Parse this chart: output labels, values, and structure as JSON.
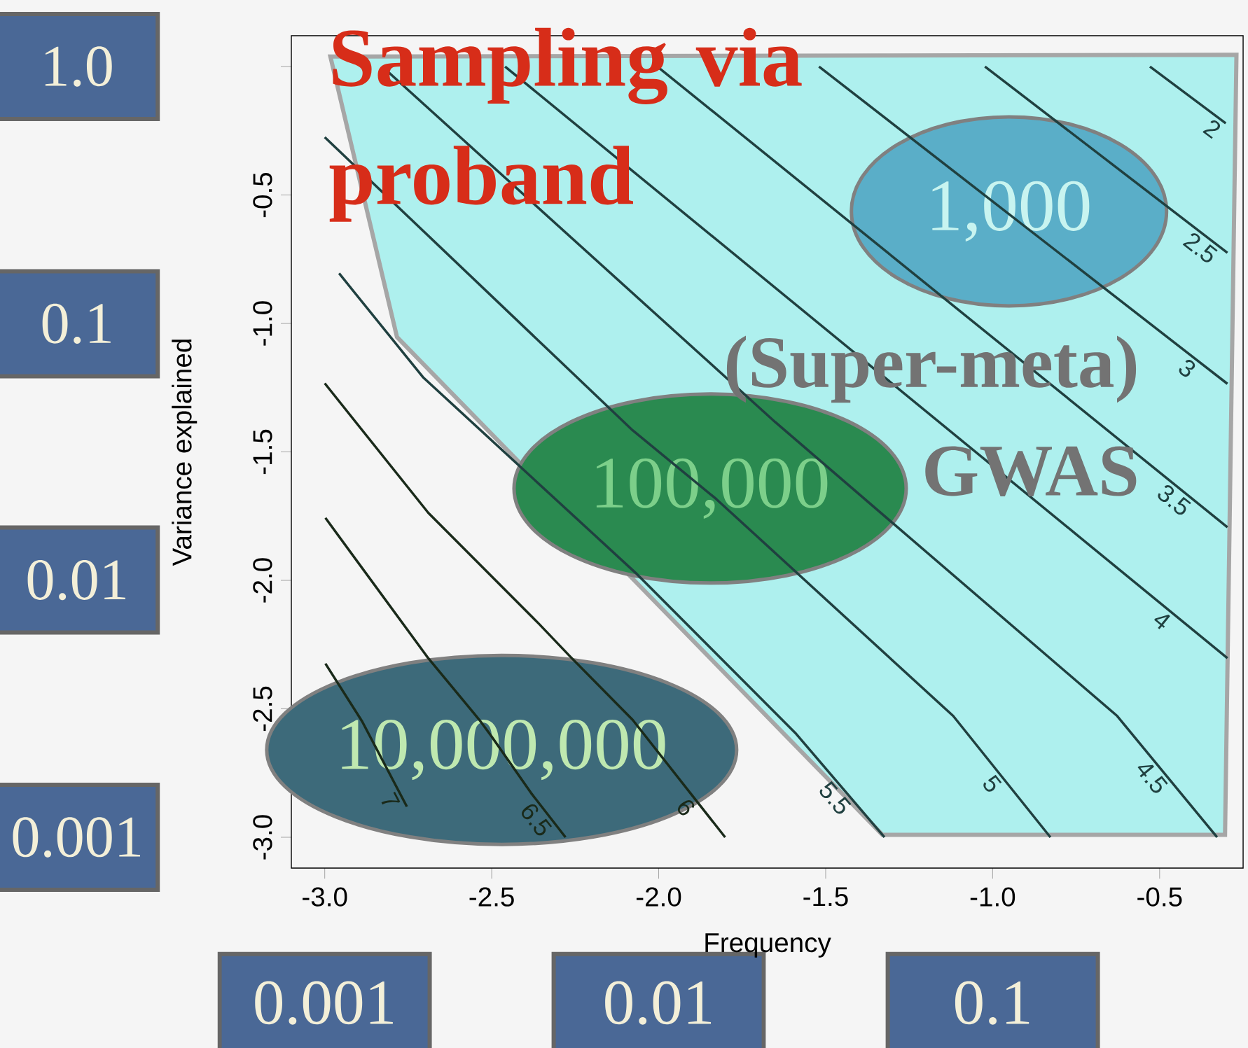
{
  "chart_data": {
    "type": "line",
    "xlabel": "Frequency",
    "ylabel": "Variance explained",
    "xlim": [
      -3.1,
      -0.25
    ],
    "ylim": [
      -3.12,
      0.12
    ],
    "xticks": [
      {
        "value": -3,
        "label": "-3.0"
      },
      -2.5,
      {
        "value": -2,
        "label": "-2.0"
      },
      -1.5,
      {
        "value": -1,
        "label": "-1.0"
      },
      -0.5
    ],
    "yticks": [
      {
        "value": -3,
        "label": "-3.0"
      },
      -2.5,
      {
        "value": -2,
        "label": "-2.0"
      },
      -1.5,
      {
        "value": -1,
        "label": "-1.0"
      },
      -0.5,
      {
        "value": 0,
        "label": null
      }
    ],
    "line_style": "solid",
    "series": [
      {
        "name": "2",
        "color": "#204040",
        "x": [
          -0.529,
          -0.302
        ],
        "values": [
          0.0,
          -0.221
        ]
      },
      {
        "name": "2.5",
        "color": "#204040",
        "x": [
          -1.023,
          -0.297
        ],
        "values": [
          0.0,
          -0.725
        ]
      },
      {
        "name": "3",
        "color": "#204040",
        "x": [
          -1.52,
          -0.297
        ],
        "values": [
          0.0,
          -1.235
        ]
      },
      {
        "name": "3.5",
        "color": "#204040",
        "x": [
          -2.004,
          -0.297
        ],
        "values": [
          0.0,
          -1.793
        ]
      },
      {
        "name": "4",
        "color": "#204040",
        "x": [
          -2.46,
          -0.297
        ],
        "values": [
          0.0,
          -2.303
        ]
      },
      {
        "name": "4.5",
        "color": "#204040",
        "x": [
          -2.828,
          -1.651,
          -0.627,
          -0.328
        ],
        "values": [
          0.0,
          -1.384,
          -2.528,
          -3.0
        ]
      },
      {
        "name": "5",
        "color": "#204040",
        "x": [
          -3.0,
          -2.078,
          -1.828,
          -1.118,
          -0.827
        ],
        "values": [
          -0.275,
          -1.416,
          -1.683,
          -2.528,
          -3.0
        ]
      },
      {
        "name": "5.5",
        "color": "#204040",
        "x": [
          -2.957,
          -2.706,
          -2.069,
          -1.591,
          -1.324
        ],
        "values": [
          -0.805,
          -1.209,
          -1.971,
          -2.594,
          -3.0
        ]
      },
      {
        "name": "6",
        "color": "#1a2a1a",
        "x": [
          -3.0,
          -2.69,
          -2.358,
          -2.267,
          -2.078,
          -1.801
        ],
        "values": [
          -1.233,
          -1.737,
          -2.17,
          -2.294,
          -2.543,
          -3.0
        ]
      },
      {
        "name": "6.5",
        "color": "#1a2a1a",
        "x": [
          -2.998,
          -2.69,
          -2.537,
          -2.503,
          -2.382,
          -2.279
        ],
        "values": [
          -1.757,
          -2.303,
          -2.543,
          -2.603,
          -2.828,
          -3.0
        ]
      },
      {
        "name": "7",
        "color": "#1a2a1a",
        "x": [
          -2.998,
          -2.888,
          -2.754
        ],
        "values": [
          -2.324,
          -2.549,
          -2.881
        ]
      }
    ],
    "annotations": [
      "1.0",
      "0.1",
      "0.01",
      "0.001",
      "0.001",
      "0.01",
      "0.1",
      "Sampling via proband",
      "(Super-meta) GWAS",
      "1,000",
      "100,000",
      "10,000,000"
    ]
  }
}
